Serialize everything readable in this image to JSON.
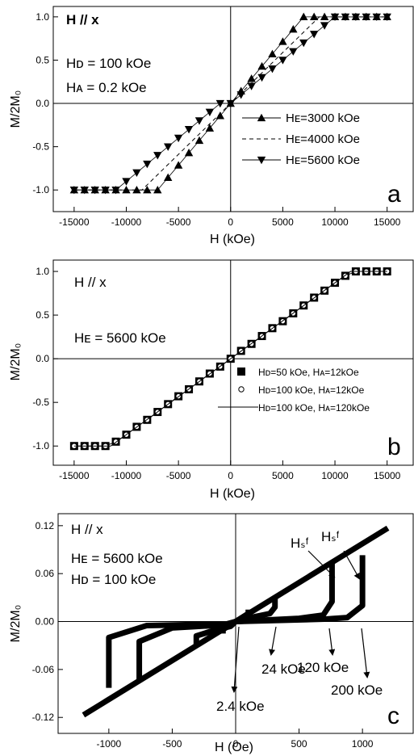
{
  "chart_data": [
    {
      "type": "line",
      "panel_label": "a",
      "xlabel": "H (kOe)",
      "ylabel": "M/2M₀",
      "xlim": [
        -17000,
        17500
      ],
      "ylim": [
        -1.25,
        1.12
      ],
      "xticks": [
        -15000,
        -10000,
        -5000,
        0,
        5000,
        10000,
        15000
      ],
      "xtick_labels": [
        "-15000",
        "-10000",
        "-5000",
        "0",
        "5000",
        "10000",
        "15000"
      ],
      "yticks": [
        -1.0,
        -0.5,
        0.0,
        0.5,
        1.0
      ],
      "ytick_labels": [
        "-1.0",
        "-0.5",
        "0.0",
        "0.5",
        "1.0"
      ],
      "annotations": [
        "H  // x",
        "Hᴅ = 100 kOe",
        "Hᴀ = 0.2 kOe"
      ],
      "series": [
        {
          "name": "Hᴇ=3000 kOe",
          "style": "up-triangle",
          "x": [
            -15000,
            -14000,
            -13000,
            -12000,
            -11000,
            -10000,
            -9000,
            -8000,
            -7000,
            -6000,
            -5000,
            -4000,
            -3000,
            -2000,
            -1000,
            0,
            1000,
            2000,
            3000,
            4000,
            5000,
            6000,
            7000,
            8000,
            9000,
            10000,
            11000,
            12000,
            13000,
            14000,
            15000
          ],
          "y": [
            -1,
            -1,
            -1,
            -1,
            -1,
            -1,
            -1,
            -1,
            -1,
            -0.857,
            -0.714,
            -0.571,
            -0.429,
            -0.286,
            -0.143,
            0,
            0.143,
            0.286,
            0.429,
            0.571,
            0.714,
            0.857,
            1,
            1,
            1,
            1,
            1,
            1,
            1,
            1,
            1
          ]
        },
        {
          "name": "Hᴇ=4000 kOe",
          "style": "dashed",
          "x": [
            -15000,
            -8500,
            8500,
            15000
          ],
          "y": [
            -1,
            -1,
            1,
            1
          ]
        },
        {
          "name": "Hᴇ=5600 kOe",
          "style": "down-triangle",
          "x": [
            -15000,
            -14000,
            -13000,
            -12000,
            -11000,
            -10000,
            -9000,
            -8000,
            -7000,
            -6000,
            -5000,
            -4000,
            -3000,
            -2000,
            -1000,
            0,
            1000,
            2000,
            3000,
            4000,
            5000,
            6000,
            7000,
            8000,
            9000,
            10000,
            11000,
            12000,
            13000,
            14000,
            15000
          ],
          "y": [
            -1,
            -1,
            -1,
            -1,
            -1,
            -0.9,
            -0.8,
            -0.7,
            -0.6,
            -0.5,
            -0.4,
            -0.3,
            -0.2,
            -0.1,
            0,
            0,
            0.1,
            0.2,
            0.3,
            0.4,
            0.5,
            0.6,
            0.7,
            0.8,
            0.9,
            1,
            1,
            1,
            1,
            1,
            1
          ]
        }
      ]
    },
    {
      "type": "line",
      "panel_label": "b",
      "xlabel": "H (kOe)",
      "ylabel": "M/2M₀",
      "xlim": [
        -17000,
        17500
      ],
      "ylim": [
        -1.22,
        1.13
      ],
      "xticks": [
        -15000,
        -10000,
        -5000,
        0,
        5000,
        10000,
        15000
      ],
      "xtick_labels": [
        "-15000",
        "-10000",
        "-5000",
        "0",
        "5000",
        "10000",
        "15000"
      ],
      "yticks": [
        -1.0,
        -0.5,
        0.0,
        0.5,
        1.0
      ],
      "ytick_labels": [
        "-1.0",
        "-0.5",
        "0.0",
        "0.5",
        "1.0"
      ],
      "annotations": [
        "H // x",
        "Hᴇ = 5600 kOe"
      ],
      "series": [
        {
          "name": "Hᴅ=50 kOe, Hᴀ=12kOe",
          "style": "square",
          "x": [
            -15000,
            -14000,
            -13000,
            -12000,
            -11000,
            -10000,
            -9000,
            -8000,
            -7000,
            -6000,
            -5000,
            -4000,
            -3000,
            -2000,
            -1000,
            0,
            1000,
            2000,
            3000,
            4000,
            5000,
            6000,
            7000,
            8000,
            9000,
            10000,
            11000,
            12000,
            13000,
            14000,
            15000
          ],
          "y": [
            -1,
            -1,
            -1,
            -1,
            -0.95,
            -0.87,
            -0.78,
            -0.7,
            -0.61,
            -0.52,
            -0.43,
            -0.35,
            -0.26,
            -0.17,
            -0.09,
            0,
            0.09,
            0.17,
            0.26,
            0.35,
            0.43,
            0.52,
            0.61,
            0.7,
            0.78,
            0.87,
            0.95,
            1,
            1,
            1,
            1
          ]
        },
        {
          "name": "Hᴅ=100 kOe, Hᴀ=12kOe",
          "style": "circle",
          "x": [
            -15000,
            -14000,
            -13000,
            -12000,
            -11000,
            -10000,
            -9000,
            -8000,
            -7000,
            -6000,
            -5000,
            -4000,
            -3000,
            -2000,
            -1000,
            0,
            1000,
            2000,
            3000,
            4000,
            5000,
            6000,
            7000,
            8000,
            9000,
            10000,
            11000,
            12000,
            13000,
            14000,
            15000
          ],
          "y": [
            -1,
            -1,
            -1,
            -1,
            -0.95,
            -0.87,
            -0.78,
            -0.7,
            -0.61,
            -0.52,
            -0.43,
            -0.35,
            -0.26,
            -0.17,
            -0.09,
            0,
            0.09,
            0.17,
            0.26,
            0.35,
            0.43,
            0.52,
            0.61,
            0.7,
            0.78,
            0.87,
            0.95,
            1,
            1,
            1,
            1
          ]
        },
        {
          "name": "Hᴅ=100 kOe, Hᴀ=120kOe",
          "style": "line",
          "x": [
            -15000,
            -11500,
            11500,
            15000
          ],
          "y": [
            -1,
            -1,
            1,
            1
          ]
        }
      ]
    },
    {
      "type": "line",
      "panel_label": "c",
      "xlabel": "H (Oe)",
      "ylabel": "M/2M₀",
      "xlim": [
        -1400,
        1400
      ],
      "ylim": [
        -0.14,
        0.135
      ],
      "xticks": [
        -1000,
        -500,
        0,
        500,
        1000
      ],
      "xtick_labels": [
        "-1000",
        "-500",
        "0",
        "500",
        "1000"
      ],
      "yticks": [
        -0.12,
        -0.06,
        0.0,
        0.06,
        0.12
      ],
      "ytick_labels": [
        "-0.12",
        "-0.06",
        "0.00",
        "0.06",
        "0.12"
      ],
      "annotations": [
        "H // x",
        "Hᴇ = 5600 kOe",
        "Hᴅ = 100 kOe"
      ],
      "arrow_labels": [
        "Hₛᶠ",
        "Hₛᶠ",
        "120 kOe",
        "24 kOe",
        "200 kOe",
        "2.4 kOe"
      ],
      "series": [
        {
          "name": "",
          "style": "thick-line",
          "x": [
            -1200,
            1200
          ],
          "y": [
            -0.117,
            0.117
          ]
        },
        {
          "name": "",
          "style": "thick-line",
          "x": [
            1000,
            1000,
            880,
            700,
            0,
            -70,
            -700,
            -1000,
            -1000
          ],
          "y": [
            0.083,
            0.02,
            0.005,
            0.003,
            0,
            -0.003,
            -0.005,
            -0.02,
            -0.083
          ]
        },
        {
          "name": "",
          "style": "thick-line",
          "x": [
            760,
            760,
            690,
            500,
            0,
            -70,
            -500,
            -760,
            -760
          ],
          "y": [
            0.075,
            0.025,
            0.008,
            0.004,
            0,
            -0.004,
            -0.008,
            -0.025,
            -0.075
          ]
        },
        {
          "name": "",
          "style": "thick-line",
          "x": [
            310,
            310,
            270,
            150,
            0,
            -40,
            -150,
            -310,
            -310
          ],
          "y": [
            0.032,
            0.018,
            0.01,
            0.006,
            0,
            -0.006,
            -0.01,
            -0.018,
            -0.032
          ]
        },
        {
          "name": "",
          "style": "thick-line",
          "x": [
            100,
            100,
            60,
            0,
            -60,
            -100,
            -100
          ],
          "y": [
            0.015,
            0.01,
            0.006,
            0,
            -0.006,
            -0.01,
            -0.015
          ]
        }
      ]
    }
  ]
}
